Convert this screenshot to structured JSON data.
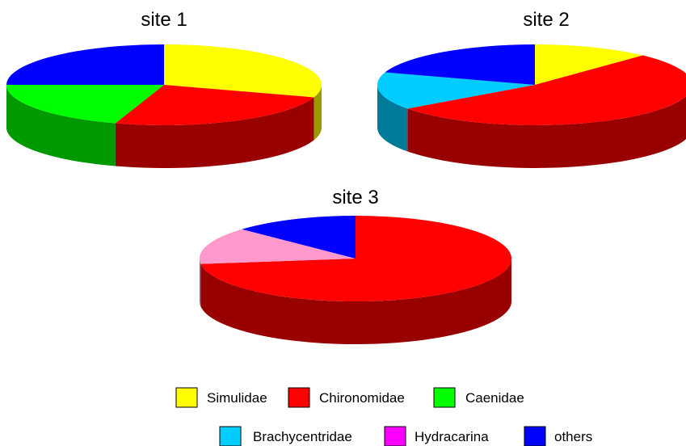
{
  "chart_data": [
    {
      "type": "pie",
      "title": "site 1",
      "slices": [
        {
          "label": "Simulidae",
          "value": 30,
          "color": "#FFFF00"
        },
        {
          "label": "Chironomidae",
          "value": 25,
          "color": "#FF0000"
        },
        {
          "label": "Caenidae",
          "value": 20,
          "color": "#00FF00"
        },
        {
          "label": "others",
          "value": 25,
          "color": "#0000FF"
        }
      ]
    },
    {
      "type": "pie",
      "title": "site 2",
      "slices": [
        {
          "label": "Simulidae",
          "value": 12,
          "color": "#FFFF00"
        },
        {
          "label": "Chironomidae",
          "value": 53,
          "color": "#FF0000"
        },
        {
          "label": "Brachycentridae",
          "value": 15,
          "color": "#00CCFF"
        },
        {
          "label": "others",
          "value": 20,
          "color": "#0000FF"
        }
      ]
    },
    {
      "type": "pie",
      "title": "site 3",
      "slices": [
        {
          "label": "Chironomidae",
          "value": 73,
          "color": "#FF0000"
        },
        {
          "label": "Hydracarina",
          "value": 14,
          "color": "#FF99CC"
        },
        {
          "label": "others",
          "value": 13,
          "color": "#0000FF"
        }
      ]
    }
  ],
  "legend": [
    {
      "label": "Simulidae",
      "color": "#FFFF00"
    },
    {
      "label": "Chironomidae",
      "color": "#FF0000"
    },
    {
      "label": "Caenidae",
      "color": "#00FF00"
    },
    {
      "label": "Brachycentridae",
      "color": "#00CCFF"
    },
    {
      "label": "Hydracarina",
      "color": "#FF00FF"
    },
    {
      "label": "others",
      "color": "#0000FF"
    }
  ]
}
